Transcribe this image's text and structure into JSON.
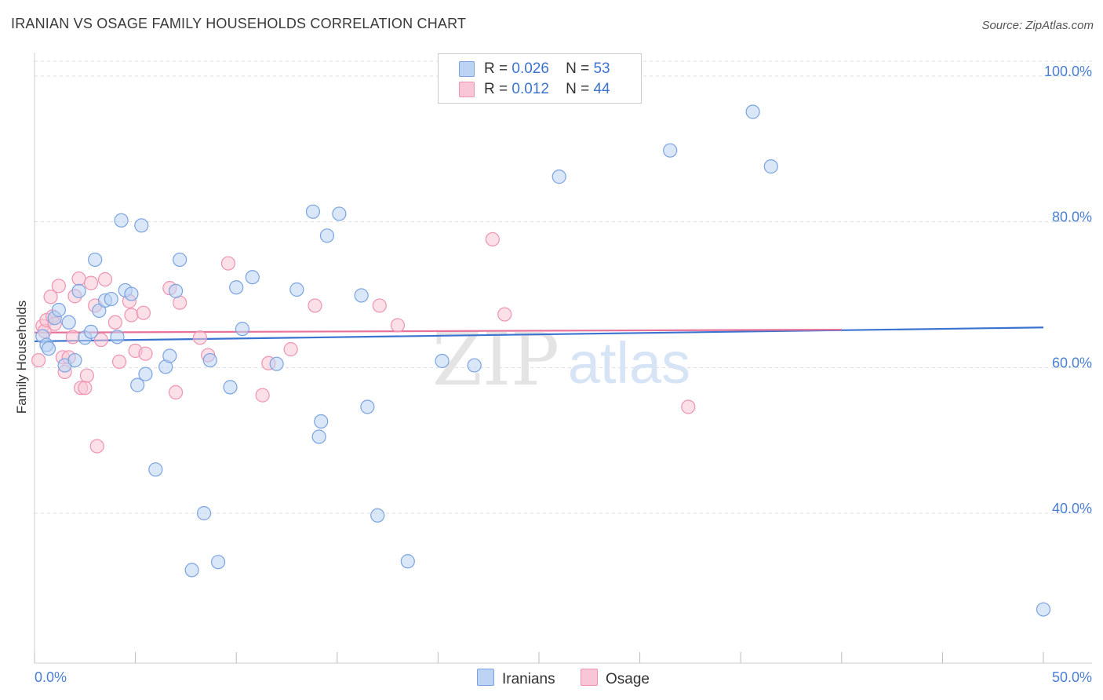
{
  "title": "IRANIAN VS OSAGE FAMILY HOUSEHOLDS CORRELATION CHART",
  "source": "Source: ZipAtlas.com",
  "watermark": {
    "zip": "ZIP",
    "atlas": "atlas"
  },
  "legend_stats": [
    {
      "r_label": "R =",
      "r_value": "0.026",
      "n_label": "N =",
      "n_value": "53"
    },
    {
      "r_label": "R =",
      "r_value": "0.012",
      "n_label": "N =",
      "n_value": "44"
    }
  ],
  "legend_series": [
    "Iranians",
    "Osage"
  ],
  "colors": {
    "iranians_fill": "#bcd3f3",
    "iranians_stroke": "#7aa3e0",
    "iranians_line": "#3b74d0",
    "osage_fill": "#f8c6d6",
    "osage_stroke": "#ee93b1",
    "osage_line": "#e8739a",
    "axis_text": "#4a7fd4",
    "grid": "#dddddd"
  },
  "chart_data": {
    "type": "scatter",
    "title": "IRANIAN VS OSAGE FAMILY HOUSEHOLDS CORRELATION CHART",
    "xlabel": "",
    "ylabel": "Family Households",
    "xlim": [
      0,
      50
    ],
    "ylim": [
      22,
      103
    ],
    "x_tick_labels": [
      "0.0%",
      "50.0%"
    ],
    "y_ticks": [
      40,
      60,
      80,
      100
    ],
    "y_tick_labels": [
      "40.0%",
      "60.0%",
      "80.0%",
      "100.0%"
    ],
    "grid": true,
    "series": [
      {
        "name": "Iranians",
        "r": 0.026,
        "n": 53,
        "trend": {
          "x": [
            0,
            50
          ],
          "y": [
            63.6,
            65.5
          ]
        },
        "points": [
          [
            0.4,
            64.3
          ],
          [
            0.6,
            63.1
          ],
          [
            0.7,
            62.6
          ],
          [
            1.0,
            66.8
          ],
          [
            1.2,
            67.9
          ],
          [
            1.5,
            60.3
          ],
          [
            1.7,
            66.2
          ],
          [
            2.0,
            61.0
          ],
          [
            2.2,
            70.5
          ],
          [
            2.5,
            64.1
          ],
          [
            2.8,
            64.9
          ],
          [
            3.0,
            74.8
          ],
          [
            3.2,
            67.8
          ],
          [
            3.5,
            69.2
          ],
          [
            3.8,
            69.4
          ],
          [
            4.1,
            64.2
          ],
          [
            4.3,
            80.2
          ],
          [
            4.5,
            70.6
          ],
          [
            4.8,
            70.1
          ],
          [
            5.1,
            57.6
          ],
          [
            5.3,
            79.5
          ],
          [
            5.5,
            59.1
          ],
          [
            6.0,
            46.0
          ],
          [
            6.5,
            60.1
          ],
          [
            6.7,
            61.6
          ],
          [
            7.0,
            70.5
          ],
          [
            7.2,
            74.8
          ],
          [
            7.8,
            32.2
          ],
          [
            8.4,
            40.0
          ],
          [
            8.7,
            61.0
          ],
          [
            9.1,
            33.3
          ],
          [
            9.7,
            57.3
          ],
          [
            10.0,
            71.0
          ],
          [
            10.3,
            65.3
          ],
          [
            10.8,
            72.4
          ],
          [
            12.0,
            60.5
          ],
          [
            13.0,
            70.7
          ],
          [
            13.8,
            81.4
          ],
          [
            14.1,
            50.5
          ],
          [
            14.2,
            52.6
          ],
          [
            14.5,
            78.1
          ],
          [
            15.1,
            81.1
          ],
          [
            16.2,
            69.9
          ],
          [
            16.5,
            54.6
          ],
          [
            17.0,
            39.7
          ],
          [
            18.5,
            33.4
          ],
          [
            20.2,
            60.9
          ],
          [
            21.8,
            60.3
          ],
          [
            26.0,
            86.2
          ],
          [
            31.5,
            89.8
          ],
          [
            35.6,
            95.1
          ],
          [
            36.5,
            87.6
          ],
          [
            50.0,
            26.8
          ]
        ]
      },
      {
        "name": "Osage",
        "r": 0.012,
        "n": 44,
        "trend": {
          "x": [
            0,
            40
          ],
          "y": [
            64.8,
            65.2
          ]
        },
        "points": [
          [
            0.2,
            61.0
          ],
          [
            0.4,
            65.7
          ],
          [
            0.5,
            65.0
          ],
          [
            0.6,
            66.5
          ],
          [
            0.8,
            69.7
          ],
          [
            0.9,
            67.0
          ],
          [
            1.0,
            66.0
          ],
          [
            1.2,
            71.2
          ],
          [
            1.4,
            61.4
          ],
          [
            1.5,
            59.4
          ],
          [
            1.7,
            61.4
          ],
          [
            1.9,
            64.2
          ],
          [
            2.0,
            69.8
          ],
          [
            2.2,
            72.2
          ],
          [
            2.3,
            57.2
          ],
          [
            2.5,
            57.2
          ],
          [
            2.6,
            58.9
          ],
          [
            2.8,
            71.6
          ],
          [
            3.0,
            68.5
          ],
          [
            3.1,
            49.2
          ],
          [
            3.3,
            63.8
          ],
          [
            3.5,
            72.1
          ],
          [
            4.0,
            66.2
          ],
          [
            4.2,
            60.8
          ],
          [
            4.7,
            69.1
          ],
          [
            4.8,
            67.2
          ],
          [
            5.0,
            62.3
          ],
          [
            5.4,
            67.5
          ],
          [
            5.5,
            61.9
          ],
          [
            6.7,
            70.9
          ],
          [
            7.0,
            56.6
          ],
          [
            7.2,
            68.9
          ],
          [
            8.2,
            64.1
          ],
          [
            8.6,
            61.7
          ],
          [
            9.6,
            74.3
          ],
          [
            11.3,
            56.2
          ],
          [
            11.6,
            60.6
          ],
          [
            12.7,
            62.5
          ],
          [
            13.9,
            68.5
          ],
          [
            17.1,
            68.5
          ],
          [
            18.0,
            65.8
          ],
          [
            22.7,
            77.6
          ],
          [
            23.3,
            67.3
          ],
          [
            32.4,
            54.6
          ]
        ]
      }
    ]
  }
}
